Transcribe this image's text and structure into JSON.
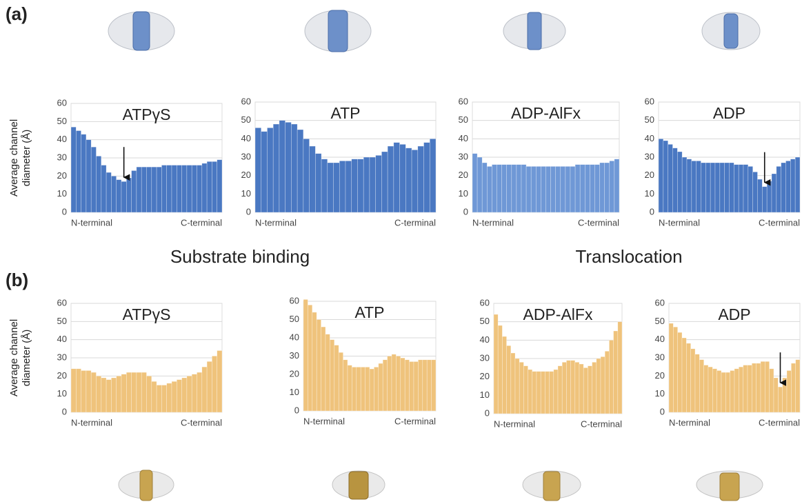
{
  "labels": {
    "a": "(a)",
    "b": "(b)",
    "substrate": "Substrate binding",
    "translocation": "Translocation"
  },
  "chart_data": [
    {
      "type": "bar",
      "title": "ATPγS",
      "ylabel": "Average channel diameter (Å)",
      "color": "#4a78c2",
      "ylim": [
        0,
        60
      ],
      "yticks": [
        0,
        10,
        20,
        30,
        40,
        50,
        60
      ],
      "grid": true,
      "arrow": true,
      "categories": [
        "N-terminal",
        null,
        null,
        null,
        null,
        null,
        null,
        null,
        null,
        null,
        null,
        null,
        null,
        null,
        null,
        null,
        null,
        null,
        null,
        null,
        null,
        null,
        null,
        null,
        null,
        null,
        null,
        null,
        null,
        "C-terminal"
      ],
      "values": [
        47,
        45,
        43,
        40,
        36,
        31,
        26,
        22,
        20,
        18,
        17,
        19,
        23,
        25,
        25,
        25,
        25,
        25,
        26,
        26,
        26,
        26,
        26,
        26,
        26,
        26,
        27,
        28,
        28,
        29
      ]
    },
    {
      "type": "bar",
      "title": "ATP",
      "color": "#4a78c2",
      "ylim": [
        0,
        60
      ],
      "yticks": [
        0,
        10,
        20,
        30,
        40,
        50,
        60
      ],
      "grid": true,
      "arrow": false,
      "categories": [
        "N-terminal",
        null,
        null,
        null,
        null,
        null,
        null,
        null,
        null,
        null,
        null,
        null,
        null,
        null,
        null,
        null,
        null,
        null,
        null,
        null,
        null,
        null,
        null,
        null,
        null,
        null,
        null,
        null,
        null,
        "C-terminal"
      ],
      "values": [
        46,
        44,
        46,
        48,
        50,
        49,
        48,
        45,
        40,
        36,
        32,
        29,
        27,
        27,
        28,
        28,
        29,
        29,
        30,
        30,
        31,
        33,
        36,
        38,
        37,
        35,
        34,
        36,
        38,
        40
      ]
    },
    {
      "type": "bar",
      "title": "ADP-AlFx",
      "color": "#6f98d6",
      "ylim": [
        0,
        60
      ],
      "yticks": [
        0,
        10,
        20,
        30,
        40,
        50,
        60
      ],
      "grid": true,
      "arrow": false,
      "categories": [
        "N-terminal",
        null,
        null,
        null,
        null,
        null,
        null,
        null,
        null,
        null,
        null,
        null,
        null,
        null,
        null,
        null,
        null,
        null,
        null,
        null,
        null,
        null,
        null,
        null,
        null,
        null,
        null,
        null,
        null,
        "C-terminal"
      ],
      "values": [
        32,
        30,
        27,
        25,
        26,
        26,
        26,
        26,
        26,
        26,
        26,
        25,
        25,
        25,
        25,
        25,
        25,
        25,
        25,
        25,
        25,
        26,
        26,
        26,
        26,
        26,
        27,
        27,
        28,
        29
      ]
    },
    {
      "type": "bar",
      "title": "ADP",
      "color": "#4a78c2",
      "ylim": [
        0,
        60
      ],
      "yticks": [
        0,
        10,
        20,
        30,
        40,
        50,
        60
      ],
      "grid": true,
      "arrow": true,
      "categories": [
        "N-terminal",
        null,
        null,
        null,
        null,
        null,
        null,
        null,
        null,
        null,
        null,
        null,
        null,
        null,
        null,
        null,
        null,
        null,
        null,
        null,
        null,
        null,
        null,
        null,
        null,
        null,
        null,
        null,
        null,
        "C-terminal"
      ],
      "values": [
        40,
        39,
        37,
        35,
        33,
        30,
        29,
        28,
        28,
        27,
        27,
        27,
        27,
        27,
        27,
        27,
        26,
        26,
        26,
        25,
        22,
        18,
        14,
        17,
        21,
        25,
        27,
        28,
        29,
        30
      ]
    },
    {
      "type": "bar",
      "title": "ATPγS",
      "ylabel": "Average channel diameter (Å)",
      "color": "#efc37c",
      "ylim": [
        0,
        60
      ],
      "yticks": [
        0,
        10,
        20,
        30,
        40,
        50,
        60
      ],
      "grid": true,
      "arrow": false,
      "categories": [
        "N-terminal",
        null,
        null,
        null,
        null,
        null,
        null,
        null,
        null,
        null,
        null,
        null,
        null,
        null,
        null,
        null,
        null,
        null,
        null,
        null,
        null,
        null,
        null,
        null,
        null,
        null,
        null,
        null,
        null,
        "C-terminal"
      ],
      "values": [
        24,
        24,
        23,
        23,
        22,
        20,
        19,
        18,
        19,
        20,
        21,
        22,
        22,
        22,
        22,
        20,
        17,
        15,
        15,
        16,
        17,
        18,
        19,
        20,
        21,
        22,
        25,
        28,
        31,
        34
      ]
    },
    {
      "type": "bar",
      "title": "ATP",
      "color": "#efc37c",
      "ylim": [
        0,
        60
      ],
      "yticks": [
        0,
        10,
        20,
        30,
        40,
        50,
        60
      ],
      "grid": true,
      "arrow": false,
      "categories": [
        "N-terminal",
        null,
        null,
        null,
        null,
        null,
        null,
        null,
        null,
        null,
        null,
        null,
        null,
        null,
        null,
        null,
        null,
        null,
        null,
        null,
        null,
        null,
        null,
        null,
        null,
        null,
        null,
        null,
        null,
        "C-terminal"
      ],
      "values": [
        61,
        58,
        54,
        50,
        46,
        42,
        39,
        36,
        32,
        28,
        25,
        24,
        24,
        24,
        24,
        23,
        24,
        26,
        28,
        30,
        31,
        30,
        29,
        28,
        27,
        27,
        28,
        28,
        28,
        28
      ]
    },
    {
      "type": "bar",
      "title": "ADP-AlFx",
      "color": "#efc37c",
      "ylim": [
        0,
        60
      ],
      "yticks": [
        0,
        10,
        20,
        30,
        40,
        50,
        60
      ],
      "grid": true,
      "arrow": false,
      "categories": [
        "N-terminal",
        null,
        null,
        null,
        null,
        null,
        null,
        null,
        null,
        null,
        null,
        null,
        null,
        null,
        null,
        null,
        null,
        null,
        null,
        null,
        null,
        null,
        null,
        null,
        null,
        null,
        null,
        null,
        null,
        "C-terminal"
      ],
      "values": [
        54,
        48,
        42,
        37,
        33,
        30,
        28,
        26,
        24,
        23,
        23,
        23,
        23,
        23,
        24,
        26,
        28,
        29,
        29,
        28,
        27,
        25,
        26,
        28,
        30,
        31,
        34,
        40,
        45,
        50
      ]
    },
    {
      "type": "bar",
      "title": "ADP",
      "color": "#efc37c",
      "ylim": [
        0,
        60
      ],
      "yticks": [
        0,
        10,
        20,
        30,
        40,
        50,
        60
      ],
      "grid": true,
      "arrow": true,
      "categories": [
        "N-terminal",
        null,
        null,
        null,
        null,
        null,
        null,
        null,
        null,
        null,
        null,
        null,
        null,
        null,
        null,
        null,
        null,
        null,
        null,
        null,
        null,
        null,
        null,
        null,
        null,
        null,
        null,
        null,
        null,
        "C-terminal"
      ],
      "values": [
        49,
        47,
        44,
        41,
        38,
        35,
        32,
        29,
        26,
        25,
        24,
        23,
        22,
        22,
        23,
        24,
        25,
        26,
        26,
        27,
        27,
        28,
        28,
        24,
        19,
        14,
        19,
        23,
        27,
        29
      ]
    }
  ]
}
